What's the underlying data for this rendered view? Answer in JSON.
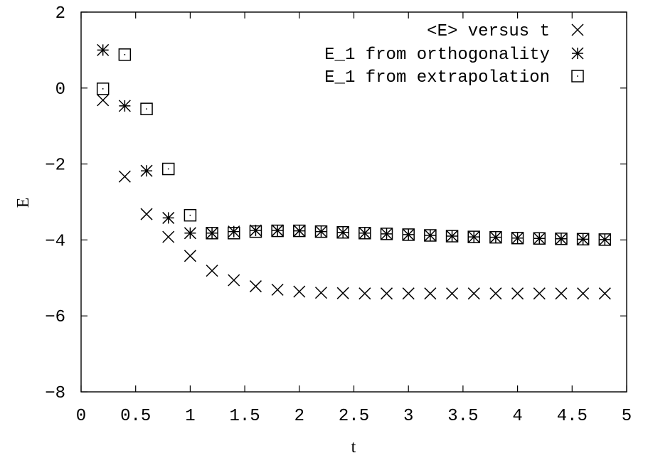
{
  "chart_data": {
    "type": "scatter",
    "xlabel": "t",
    "ylabel": "E",
    "xlim": [
      0,
      5
    ],
    "ylim": [
      -8,
      2
    ],
    "xticks": [
      "0",
      "0.5",
      "1",
      "1.5",
      "2",
      "2.5",
      "3",
      "3.5",
      "4",
      "4.5",
      "5"
    ],
    "yticks": [
      "2",
      "0",
      "-2",
      "-4",
      "-6",
      "-8"
    ],
    "legend_position": "top-right",
    "series": [
      {
        "name": "<E> versus t",
        "marker": "x",
        "x": [
          0.2,
          0.4,
          0.6,
          0.8,
          1.0,
          1.2,
          1.4,
          1.6,
          1.8,
          2.0,
          2.2,
          2.4,
          2.6,
          2.8,
          3.0,
          3.2,
          3.4,
          3.6,
          3.8,
          4.0,
          4.2,
          4.4,
          4.6,
          4.8
        ],
        "y": [
          -0.32,
          -2.33,
          -3.32,
          -3.92,
          -4.42,
          -4.81,
          -5.06,
          -5.22,
          -5.31,
          -5.36,
          -5.39,
          -5.4,
          -5.41,
          -5.41,
          -5.41,
          -5.41,
          -5.41,
          -5.41,
          -5.41,
          -5.41,
          -5.41,
          -5.41,
          -5.41,
          -5.41
        ]
      },
      {
        "name": "E_1 from orthogonality",
        "marker": "asterisk",
        "x": [
          0.2,
          0.4,
          0.6,
          0.8,
          1.0,
          1.2,
          1.4,
          1.6,
          1.8,
          2.0,
          2.2,
          2.4,
          2.6,
          2.8,
          3.0,
          3.2,
          3.4,
          3.6,
          3.8,
          4.0,
          4.2,
          4.4,
          4.6,
          4.8
        ],
        "y": [
          1.0,
          -0.47,
          -2.18,
          -3.42,
          -3.82,
          -3.82,
          -3.78,
          -3.75,
          -3.75,
          -3.76,
          -3.78,
          -3.8,
          -3.82,
          -3.84,
          -3.86,
          -3.88,
          -3.9,
          -3.92,
          -3.93,
          -3.95,
          -3.96,
          -3.97,
          -3.98,
          -3.99
        ]
      },
      {
        "name": "E_1 from extrapolation",
        "marker": "square",
        "x": [
          0.2,
          0.4,
          0.6,
          0.8,
          1.0,
          1.2,
          1.4,
          1.6,
          1.8,
          2.0,
          2.2,
          2.4,
          2.6,
          2.8,
          3.0,
          3.2,
          3.4,
          3.6,
          3.8,
          4.0,
          4.2,
          4.4,
          4.6,
          4.8
        ],
        "y": [
          -0.02,
          0.88,
          -0.55,
          -2.13,
          -3.35,
          -3.82,
          -3.82,
          -3.78,
          -3.76,
          -3.76,
          -3.78,
          -3.8,
          -3.82,
          -3.84,
          -3.86,
          -3.88,
          -3.9,
          -3.92,
          -3.93,
          -3.95,
          -3.96,
          -3.97,
          -3.98,
          -3.99
        ]
      }
    ]
  }
}
